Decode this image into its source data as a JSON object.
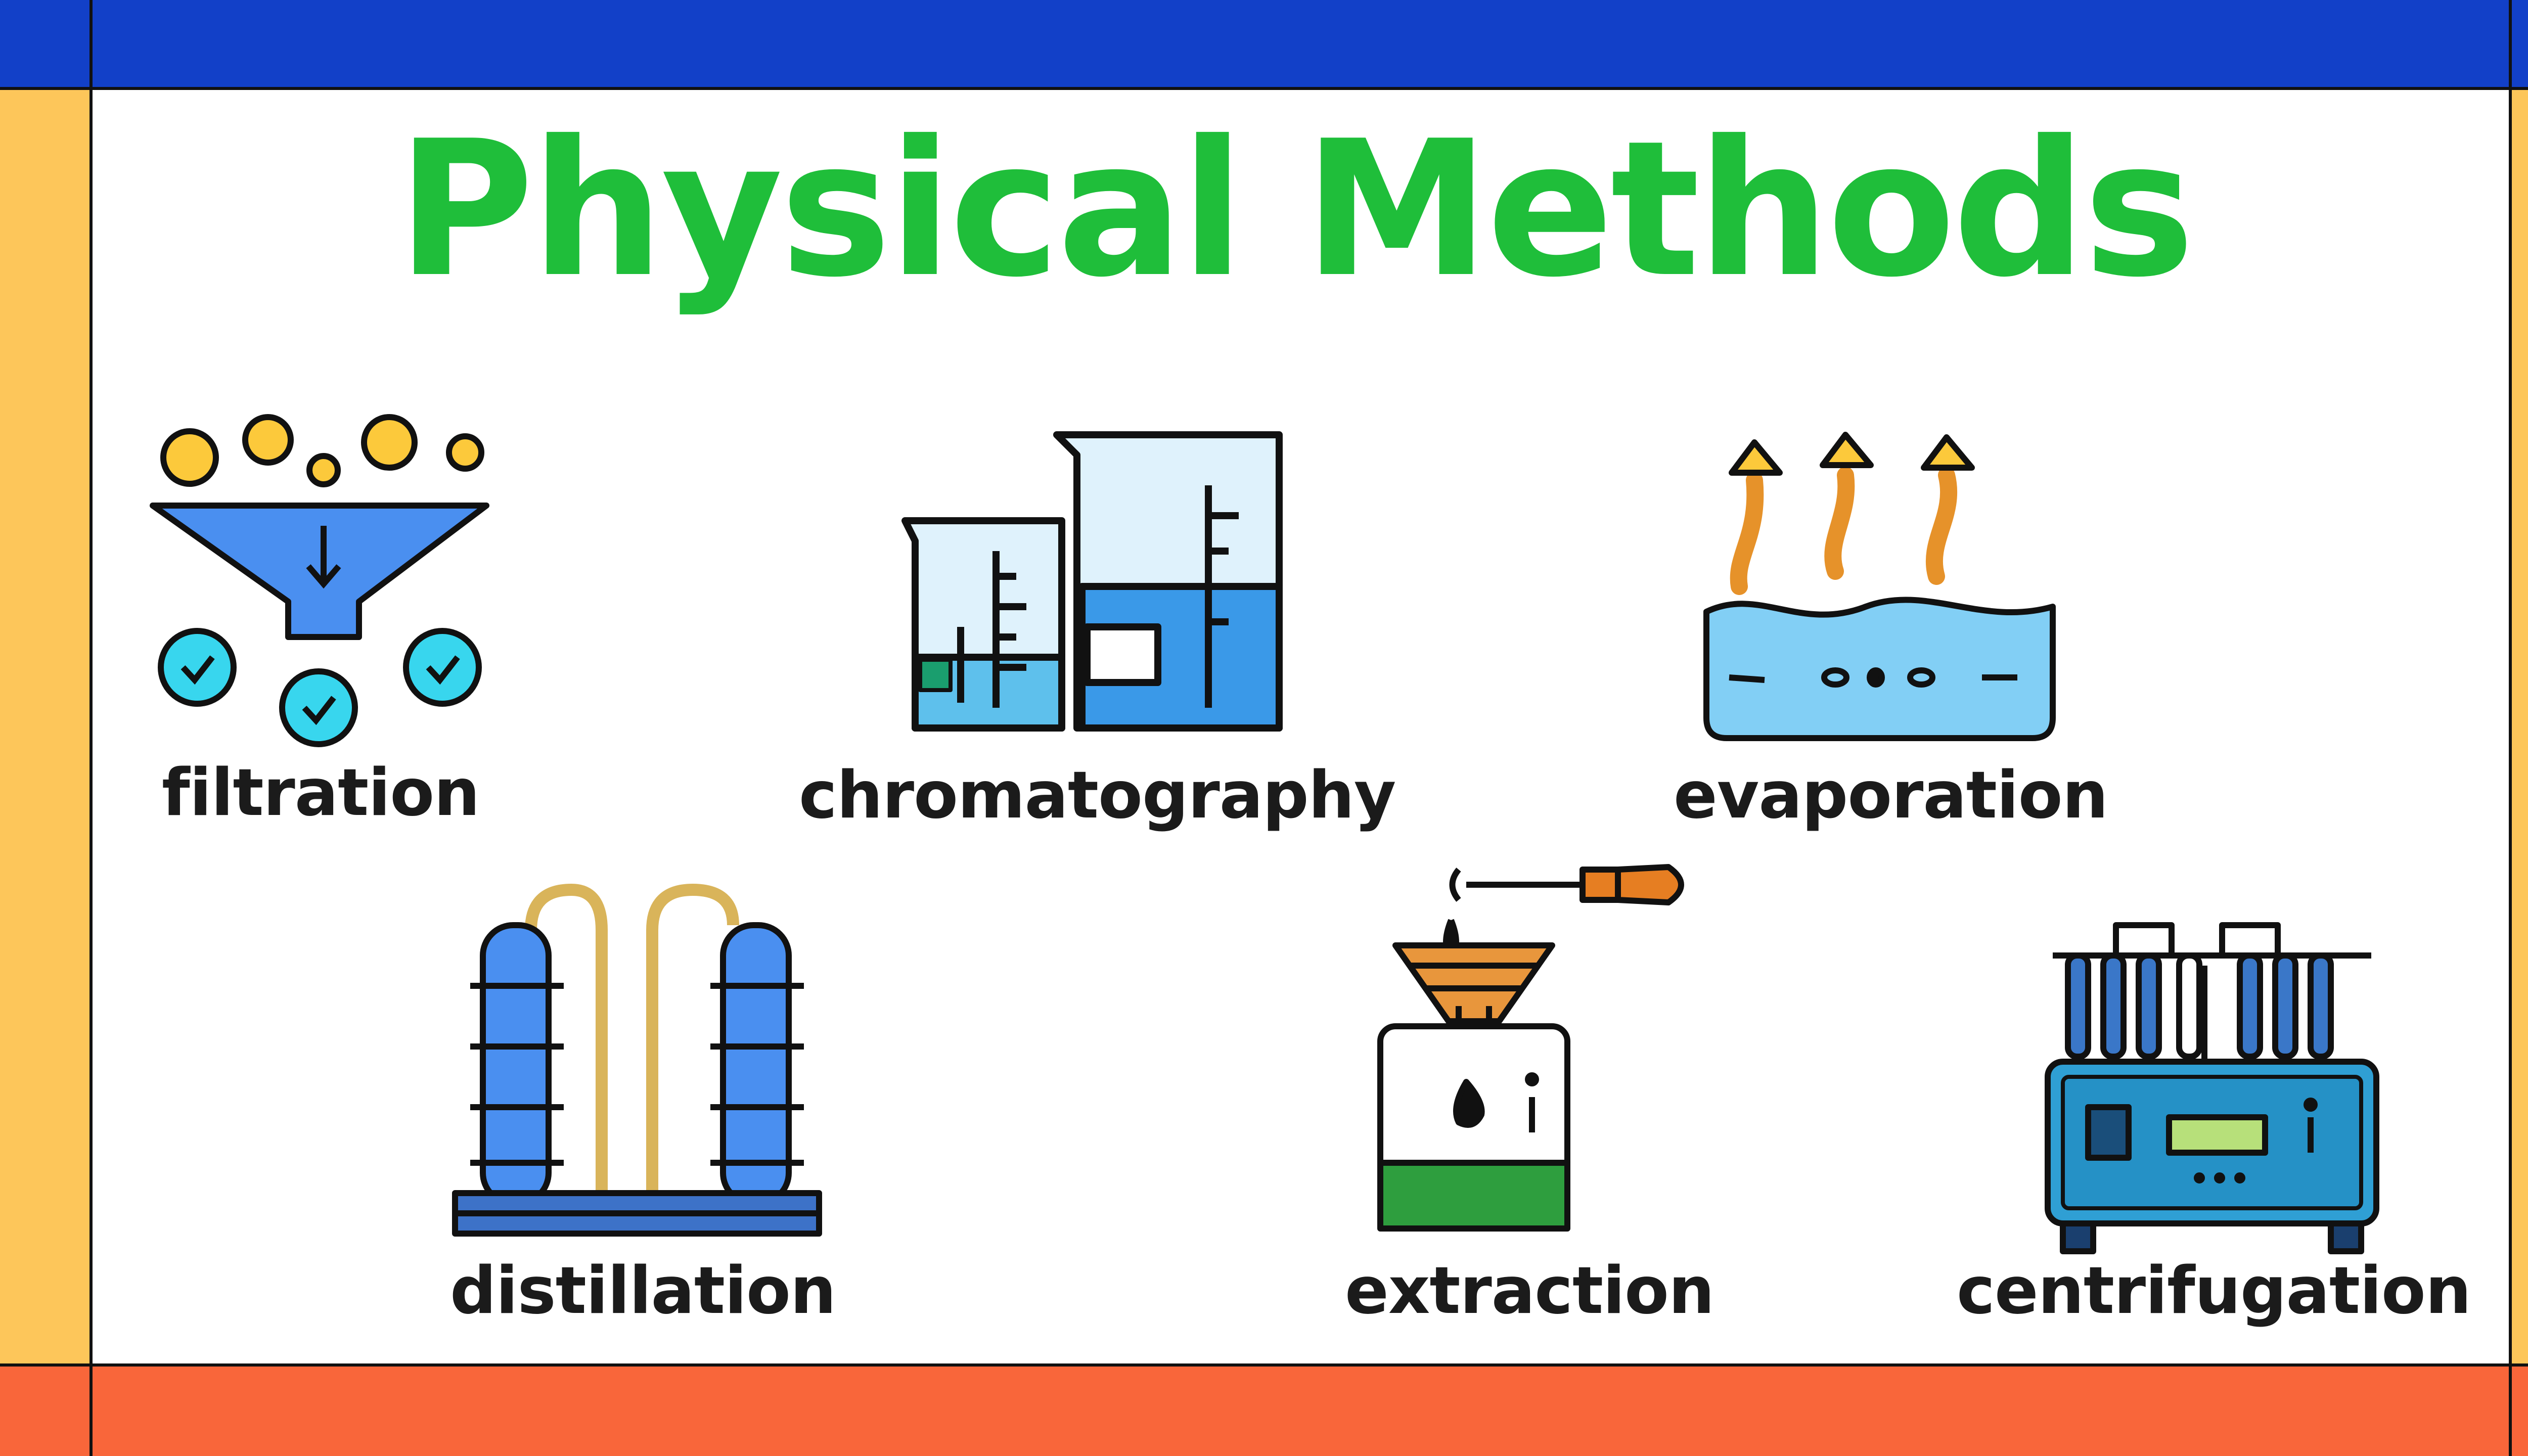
{
  "title": "Physical Methods",
  "methods": [
    {
      "label": "filtration",
      "icon": "funnel-icon"
    },
    {
      "label": "chromatography",
      "icon": "beakers-icon"
    },
    {
      "label": "evaporation",
      "icon": "evaporating-water-icon"
    },
    {
      "label": "distillation",
      "icon": "distillation-columns-icon"
    },
    {
      "label": "extraction",
      "icon": "dropper-flask-icon"
    },
    {
      "label": "centrifugation",
      "icon": "centrifuge-icon"
    }
  ],
  "colors": {
    "title_green": "#1fbe3a",
    "top_band_blue": "#1240c8",
    "side_bars_yellow": "#fdc65a",
    "bottom_band_orange": "#f9663a",
    "icon_blue": "#4a8ff0",
    "icon_cyan": "#38d6ee",
    "icon_yellow": "#fcc93b",
    "icon_orange": "#e67e22"
  }
}
